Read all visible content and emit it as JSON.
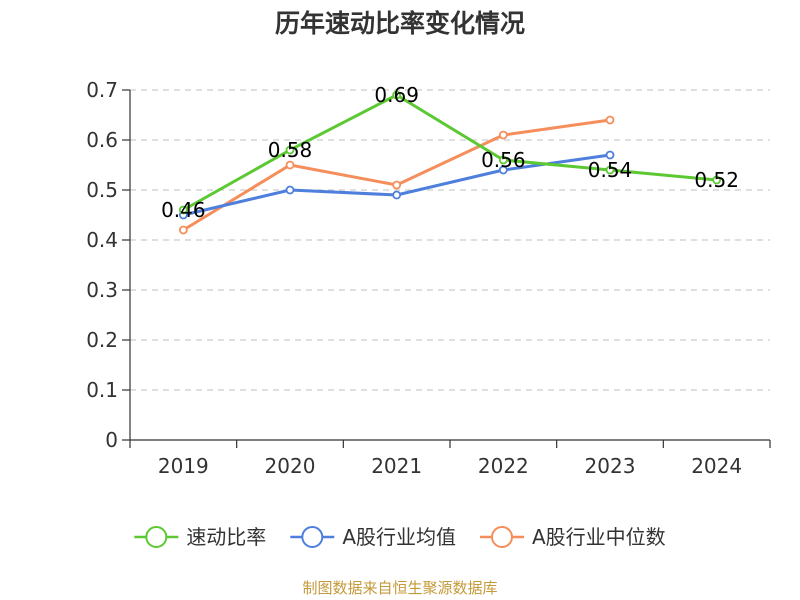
{
  "chart_data": {
    "type": "line",
    "title": "历年速动比率变化情况",
    "categories": [
      "2019",
      "2020",
      "2021",
      "2022",
      "2023",
      "2024"
    ],
    "ylim": [
      0,
      0.7
    ],
    "yticks": [
      "0",
      "0.1",
      "0.2",
      "0.3",
      "0.4",
      "0.5",
      "0.6",
      "0.7"
    ],
    "ytick_values": [
      0,
      0.1,
      0.2,
      0.3,
      0.4,
      0.5,
      0.6,
      0.7
    ],
    "grid": true,
    "legend_position": "bottom",
    "series": [
      {
        "name": "速动比率",
        "color": "#5cc832",
        "values": [
          0.46,
          0.58,
          0.69,
          0.56,
          0.54,
          0.52
        ],
        "labels": [
          "0.46",
          "0.58",
          "0.69",
          "0.56",
          "0.54",
          "0.52"
        ]
      },
      {
        "name": "A股行业均值",
        "color": "#4e7fdc",
        "values": [
          0.45,
          0.5,
          0.49,
          0.54,
          0.57,
          null
        ]
      },
      {
        "name": "A股行业中位数",
        "color": "#f58e5b",
        "values": [
          0.42,
          0.55,
          0.51,
          0.61,
          0.64,
          null
        ]
      }
    ]
  },
  "source": "制图数据来自恒生聚源数据库"
}
